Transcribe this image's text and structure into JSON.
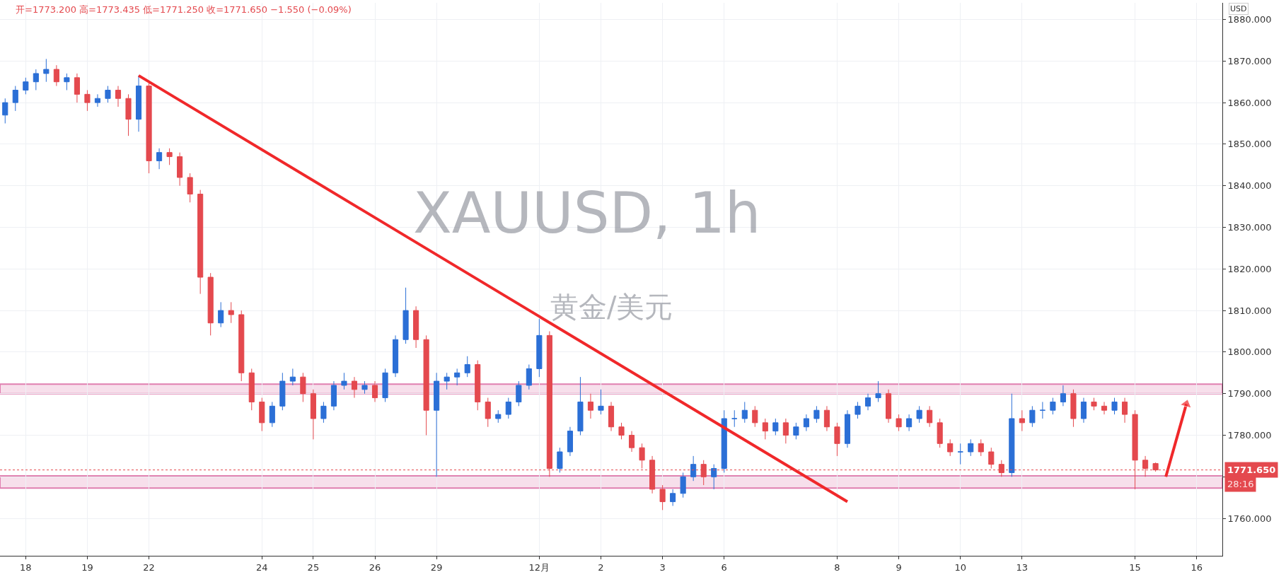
{
  "chart_data": {
    "type": "candlestick",
    "title": "XAUUSD, 1h",
    "subtitle": "黄金/美元",
    "categories": [
      null,
      null,
      "18",
      null,
      null,
      null,
      null,
      null,
      "19",
      null,
      null,
      null,
      null,
      null,
      "22",
      null,
      null,
      null,
      null,
      null,
      null,
      null,
      null,
      null,
      null,
      "24",
      null,
      null,
      null,
      null,
      "25",
      null,
      null,
      null,
      null,
      null,
      "26",
      null,
      null,
      null,
      null,
      null,
      "29",
      null,
      null,
      null,
      null,
      null,
      null,
      null,
      null,
      null,
      "12月",
      null,
      null,
      null,
      null,
      null,
      "2",
      null,
      null,
      null,
      null,
      null,
      "3",
      null,
      null,
      null,
      null,
      null,
      "6",
      null,
      null,
      null,
      null,
      null,
      null,
      null,
      null,
      null,
      null,
      "8",
      null,
      null,
      null,
      null,
      null,
      "9",
      null,
      null,
      null,
      null,
      null,
      "10",
      null,
      null,
      null,
      null,
      null,
      "13",
      null,
      null,
      null,
      null,
      null,
      null,
      null,
      null,
      null,
      null,
      "15",
      null,
      null,
      null,
      null,
      null,
      "16",
      null,
      null
    ],
    "ohlc": [
      [
        1857,
        1861,
        1855,
        1860
      ],
      [
        1860,
        1864,
        1858,
        1863
      ],
      [
        1863,
        1866,
        1862,
        1865
      ],
      [
        1865,
        1868,
        1863,
        1867
      ],
      [
        1867,
        1870.5,
        1865,
        1868
      ],
      [
        1868,
        1869,
        1864,
        1865
      ],
      [
        1865,
        1867,
        1863,
        1866
      ],
      [
        1866,
        1867,
        1860,
        1862
      ],
      [
        1862,
        1863,
        1858,
        1860
      ],
      [
        1860,
        1862,
        1859,
        1861
      ],
      [
        1861,
        1864,
        1860,
        1863
      ],
      [
        1863,
        1864,
        1859,
        1861
      ],
      [
        1861,
        1862,
        1852,
        1856
      ],
      [
        1856,
        1866.5,
        1853,
        1864
      ],
      [
        1864,
        1865,
        1843,
        1846
      ],
      [
        1846,
        1849,
        1844,
        1848
      ],
      [
        1848,
        1849,
        1845,
        1847
      ],
      [
        1847,
        1848,
        1840,
        1842
      ],
      [
        1842,
        1843,
        1836,
        1838
      ],
      [
        1838,
        1839,
        1814,
        1818
      ],
      [
        1818,
        1819,
        1804,
        1807
      ],
      [
        1807,
        1812,
        1806,
        1810
      ],
      [
        1810,
        1812,
        1807,
        1809
      ],
      [
        1809,
        1810,
        1793,
        1795
      ],
      [
        1795,
        1796,
        1786,
        1788
      ],
      [
        1788,
        1789,
        1781,
        1783
      ],
      [
        1783,
        1788,
        1782,
        1787
      ],
      [
        1787,
        1795,
        1786,
        1793
      ],
      [
        1793,
        1796,
        1792,
        1794
      ],
      [
        1794,
        1795,
        1788,
        1790
      ],
      [
        1790,
        1791,
        1779,
        1784
      ],
      [
        1784,
        1788,
        1783,
        1787
      ],
      [
        1787,
        1793,
        1786,
        1792
      ],
      [
        1792,
        1795,
        1791,
        1793
      ],
      [
        1793,
        1794,
        1789,
        1791
      ],
      [
        1791,
        1793,
        1790,
        1792
      ],
      [
        1792,
        1793,
        1788,
        1789
      ],
      [
        1789,
        1796,
        1788,
        1795
      ],
      [
        1795,
        1804,
        1794,
        1803
      ],
      [
        1803,
        1815.5,
        1802,
        1810
      ],
      [
        1810,
        1811,
        1801,
        1803
      ],
      [
        1803,
        1804,
        1780,
        1786
      ],
      [
        1786,
        1795,
        1770,
        1793
      ],
      [
        1793,
        1795,
        1791,
        1794
      ],
      [
        1794,
        1796,
        1792,
        1795
      ],
      [
        1795,
        1799,
        1794,
        1797
      ],
      [
        1797,
        1798,
        1786,
        1788
      ],
      [
        1788,
        1789,
        1782,
        1784
      ],
      [
        1784,
        1786,
        1783,
        1785
      ],
      [
        1785,
        1789,
        1784,
        1788
      ],
      [
        1788,
        1793,
        1787,
        1792
      ],
      [
        1792,
        1797,
        1791,
        1796
      ],
      [
        1796,
        1808,
        1794,
        1804
      ],
      [
        1804,
        1805,
        1770,
        1772
      ],
      [
        1772,
        1777,
        1771,
        1776
      ],
      [
        1776,
        1782,
        1775,
        1781
      ],
      [
        1781,
        1794,
        1780,
        1788
      ],
      [
        1788,
        1790,
        1784,
        1786
      ],
      [
        1786,
        1791,
        1785,
        1787
      ],
      [
        1787,
        1788,
        1781,
        1782
      ],
      [
        1782,
        1783,
        1779,
        1780
      ],
      [
        1780,
        1781,
        1776,
        1777
      ],
      [
        1777,
        1778,
        1772,
        1774
      ],
      [
        1774,
        1775,
        1766,
        1767
      ],
      [
        1767,
        1768,
        1762,
        1764
      ],
      [
        1764,
        1767,
        1763,
        1766
      ],
      [
        1766,
        1771,
        1765,
        1770
      ],
      [
        1770,
        1775,
        1769,
        1773
      ],
      [
        1773,
        1774,
        1768,
        1770
      ],
      [
        1770,
        1773,
        1767,
        1772
      ],
      [
        1772,
        1786,
        1771,
        1784
      ],
      [
        1784,
        1786,
        1782,
        1784
      ],
      [
        1784,
        1788,
        1783,
        1786
      ],
      [
        1786,
        1787,
        1782,
        1783
      ],
      [
        1783,
        1784,
        1779,
        1781
      ],
      [
        1781,
        1784,
        1780,
        1783
      ],
      [
        1783,
        1784,
        1778,
        1780
      ],
      [
        1780,
        1783,
        1779,
        1782
      ],
      [
        1782,
        1785,
        1781,
        1784
      ],
      [
        1784,
        1787,
        1783,
        1786
      ],
      [
        1786,
        1787,
        1781,
        1782
      ],
      [
        1782,
        1783,
        1775,
        1778
      ],
      [
        1778,
        1786,
        1777,
        1785
      ],
      [
        1785,
        1788,
        1784,
        1787
      ],
      [
        1787,
        1790,
        1786,
        1789
      ],
      [
        1789,
        1793,
        1788,
        1790
      ],
      [
        1790,
        1791,
        1783,
        1784
      ],
      [
        1784,
        1785,
        1781,
        1782
      ],
      [
        1782,
        1785,
        1781,
        1784
      ],
      [
        1784,
        1787,
        1783,
        1786
      ],
      [
        1786,
        1787,
        1782,
        1783
      ],
      [
        1783,
        1784,
        1777,
        1778
      ],
      [
        1778,
        1779,
        1775,
        1776
      ],
      [
        1776,
        1778,
        1773,
        1776
      ],
      [
        1776,
        1779,
        1775,
        1778
      ],
      [
        1778,
        1779,
        1775,
        1776
      ],
      [
        1776,
        1777,
        1772,
        1773
      ],
      [
        1773,
        1774,
        1770,
        1771
      ],
      [
        1771,
        1790,
        1770,
        1784
      ],
      [
        1784,
        1786,
        1781,
        1783
      ],
      [
        1783,
        1787,
        1782,
        1786
      ],
      [
        1786,
        1788,
        1784,
        1786
      ],
      [
        1786,
        1789,
        1785,
        1788
      ],
      [
        1788,
        1792,
        1787,
        1790
      ],
      [
        1790,
        1791,
        1782,
        1784
      ],
      [
        1784,
        1789,
        1783,
        1788
      ],
      [
        1788,
        1789,
        1786,
        1787
      ],
      [
        1787,
        1788,
        1785,
        1786
      ],
      [
        1786,
        1789,
        1785,
        1788
      ],
      [
        1788,
        1789,
        1783,
        1785
      ],
      [
        1785,
        1786,
        1767,
        1774
      ],
      [
        1774,
        1775,
        1770,
        1772
      ],
      [
        1773.2,
        1773.435,
        1771.25,
        1771.65
      ],
      null,
      null,
      null,
      null,
      null,
      null
    ],
    "colors": [
      "#2b6fd6",
      "#2b6fd6",
      "#2b6fd6",
      "#2b6fd6",
      "#2b6fd6",
      "#e4494e",
      "#2b6fd6",
      "#e4494e",
      "#e4494e",
      "#2b6fd6",
      "#2b6fd6",
      "#e4494e",
      "#e4494e",
      "#2b6fd6",
      "#e4494e",
      "#2b6fd6",
      "#e4494e",
      "#e4494e",
      "#e4494e",
      "#e4494e",
      "#e4494e",
      "#2b6fd6",
      "#e4494e",
      "#e4494e",
      "#e4494e",
      "#e4494e",
      "#2b6fd6",
      "#2b6fd6",
      "#2b6fd6",
      "#e4494e",
      "#e4494e",
      "#2b6fd6",
      "#2b6fd6",
      "#2b6fd6",
      "#e4494e",
      "#2b6fd6",
      "#e4494e",
      "#2b6fd6",
      "#2b6fd6",
      "#2b6fd6",
      "#e4494e",
      "#e4494e",
      "#2b6fd6",
      "#2b6fd6",
      "#2b6fd6",
      "#2b6fd6",
      "#e4494e",
      "#e4494e",
      "#2b6fd6",
      "#2b6fd6",
      "#2b6fd6",
      "#2b6fd6",
      "#2b6fd6",
      "#e4494e",
      "#2b6fd6",
      "#2b6fd6",
      "#2b6fd6",
      "#e4494e",
      "#2b6fd6",
      "#e4494e",
      "#e4494e",
      "#e4494e",
      "#e4494e",
      "#e4494e",
      "#e4494e",
      "#2b6fd6",
      "#2b6fd6",
      "#2b6fd6",
      "#e4494e",
      "#2b6fd6",
      "#2b6fd6",
      "#2b6fd6",
      "#2b6fd6",
      "#e4494e",
      "#e4494e",
      "#2b6fd6",
      "#e4494e",
      "#2b6fd6",
      "#2b6fd6",
      "#2b6fd6",
      "#e4494e",
      "#e4494e",
      "#2b6fd6",
      "#2b6fd6",
      "#2b6fd6",
      "#2b6fd6",
      "#e4494e",
      "#e4494e",
      "#2b6fd6",
      "#2b6fd6",
      "#e4494e",
      "#e4494e",
      "#e4494e",
      "#2b6fd6",
      "#2b6fd6",
      "#e4494e",
      "#e4494e",
      "#e4494e",
      "#2b6fd6",
      "#e4494e",
      "#2b6fd6",
      "#2b6fd6",
      "#2b6fd6",
      "#2b6fd6",
      "#e4494e",
      "#2b6fd6",
      "#e4494e",
      "#e4494e",
      "#2b6fd6",
      "#e4494e",
      "#e4494e",
      "#e4494e",
      "#e4494e",
      null,
      null,
      null,
      null,
      null,
      null
    ],
    "series": [
      {
        "type": "line",
        "color": "#f0282a",
        "line_style": "solid",
        "values": [
          null,
          null,
          null,
          null,
          null,
          null,
          null,
          null,
          null,
          null,
          null,
          null,
          null,
          1866.5,
          null,
          null,
          null,
          null,
          null,
          null,
          null,
          null,
          null,
          null,
          null,
          null,
          null,
          null,
          null,
          null,
          null,
          null,
          null,
          null,
          null,
          null,
          null,
          null,
          null,
          null,
          null,
          null,
          null,
          null,
          null,
          null,
          null,
          null,
          null,
          null,
          null,
          null,
          null,
          null,
          null,
          null,
          null,
          null,
          null,
          null,
          null,
          null,
          null,
          null,
          null,
          null,
          null,
          null,
          null,
          null,
          null,
          null,
          null,
          null,
          null,
          null,
          null,
          null,
          null,
          null,
          null,
          null,
          1764,
          null,
          null,
          null,
          null,
          null,
          null,
          null,
          null,
          null,
          null,
          null,
          null,
          null,
          null,
          null,
          null,
          null,
          null,
          null,
          null,
          null,
          null,
          null,
          null,
          null,
          null,
          null,
          null,
          null,
          null,
          null,
          null,
          null,
          null,
          null,
          null
        ]
      },
      {
        "type": "line",
        "color": "#f0282a",
        "line_style": "solid",
        "marker": "triangle",
        "values": [
          null,
          null,
          null,
          null,
          null,
          null,
          null,
          null,
          null,
          null,
          null,
          null,
          null,
          null,
          null,
          null,
          null,
          null,
          null,
          null,
          null,
          null,
          null,
          null,
          null,
          null,
          null,
          null,
          null,
          null,
          null,
          null,
          null,
          null,
          null,
          null,
          null,
          null,
          null,
          null,
          null,
          null,
          null,
          null,
          null,
          null,
          null,
          null,
          null,
          null,
          null,
          null,
          null,
          null,
          null,
          null,
          null,
          null,
          null,
          null,
          null,
          null,
          null,
          null,
          null,
          null,
          null,
          null,
          null,
          null,
          null,
          null,
          null,
          null,
          null,
          null,
          null,
          null,
          null,
          null,
          null,
          null,
          null,
          null,
          null,
          null,
          null,
          null,
          null,
          null,
          null,
          null,
          null,
          null,
          null,
          null,
          null,
          null,
          null,
          null,
          null,
          null,
          null,
          null,
          null,
          null,
          null,
          null,
          null,
          null,
          null,
          null,
          null,
          1770,
          null,
          1787.5,
          null,
          null,
          null
        ]
      }
    ],
    "ylim": [
      1751,
      1884
    ],
    "yticks": [
      {
        "value": 1760,
        "label": "1760.000"
      },
      {
        "value": 1770,
        "label": null
      },
      {
        "value": 1780,
        "label": "1780.000"
      },
      {
        "value": 1790,
        "label": "1790.000"
      },
      {
        "value": 1800,
        "label": "1800.000"
      },
      {
        "value": 1810,
        "label": "1810.000"
      },
      {
        "value": 1820,
        "label": "1820.000"
      },
      {
        "value": 1830,
        "label": "1830.000"
      },
      {
        "value": 1840,
        "label": "1840.000"
      },
      {
        "value": 1850,
        "label": "1850.000"
      },
      {
        "value": 1860,
        "label": "1860.000"
      },
      {
        "value": 1870,
        "label": "1870.000"
      },
      {
        "value": 1880,
        "label": "1880.000"
      }
    ],
    "grid": true,
    "ref_lines": [
      {
        "axis": "y",
        "value": 1771.65,
        "label": "1771.650",
        "color": "#e4494e",
        "line_style": "dotted"
      }
    ],
    "bands": [
      {
        "axis": "y",
        "from": 1790,
        "to": 1792.3,
        "color": "#e07fb0"
      },
      {
        "axis": "y",
        "from": 1767.3,
        "to": 1770.2,
        "color": "#e07fb0"
      }
    ],
    "annotations": [
      "开=1773.200 高=1773.435 低=1771.250 收=1771.650 −1.550 (−0.09%)",
      "28:16",
      "USD"
    ]
  }
}
